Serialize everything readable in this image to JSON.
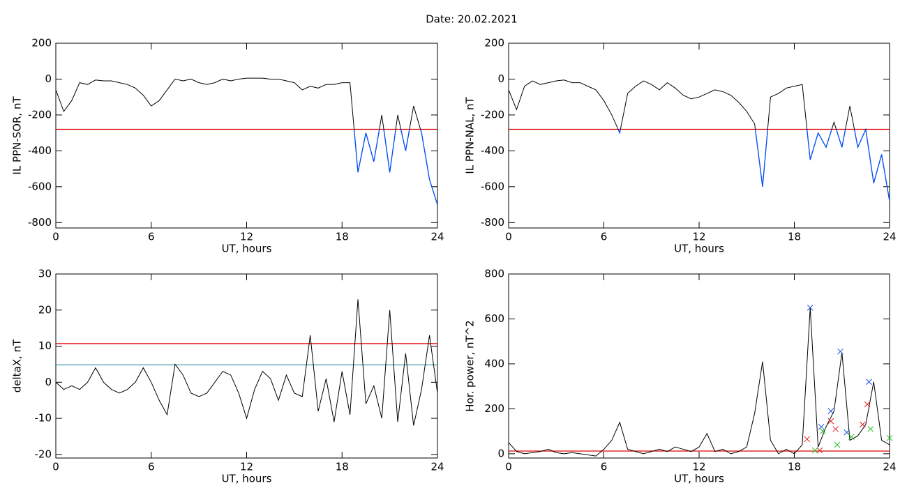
{
  "title": "Date:  20.02.2021",
  "chart_data": [
    {
      "type": "line",
      "ylabel": "IL PPN-SOR, nT",
      "xlabel": "UT, hours",
      "xlim": [
        0,
        24
      ],
      "xticks": [
        0,
        6,
        12,
        18,
        24
      ],
      "ylim": [
        -830,
        200
      ],
      "yticks": [
        -800,
        -600,
        -400,
        -200,
        0,
        200
      ],
      "color": "#000000",
      "below_color": "#0050ff",
      "hlines": [
        {
          "value": -280,
          "color": "#e00000"
        }
      ],
      "x": [
        0,
        0.5,
        1,
        1.5,
        2,
        2.5,
        3,
        3.5,
        4,
        4.5,
        5,
        5.5,
        6,
        6.5,
        7,
        7.5,
        8,
        8.5,
        9,
        9.5,
        10,
        10.5,
        11,
        11.5,
        12,
        12.5,
        13,
        13.5,
        14,
        14.5,
        15,
        15.5,
        16,
        16.5,
        17,
        17.5,
        18,
        18.5,
        19,
        19.5,
        20,
        20.5,
        21,
        21.5,
        22,
        22.5,
        23,
        23.5,
        24
      ],
      "values": [
        -60,
        -180,
        -120,
        -20,
        -30,
        -5,
        -10,
        -10,
        -20,
        -30,
        -50,
        -90,
        -150,
        -120,
        -60,
        0,
        -10,
        0,
        -20,
        -30,
        -20,
        0,
        -10,
        0,
        5,
        5,
        5,
        0,
        0,
        -10,
        -20,
        -60,
        -40,
        -50,
        -30,
        -30,
        -20,
        -20,
        -520,
        -300,
        -460,
        -200,
        -520,
        -200,
        -400,
        -150,
        -300,
        -560,
        -700
      ]
    },
    {
      "type": "line",
      "ylabel": "IL PPN-NAL, nT",
      "xlabel": "UT, hours",
      "xlim": [
        0,
        24
      ],
      "xticks": [
        0,
        6,
        12,
        18,
        24
      ],
      "ylim": [
        -830,
        200
      ],
      "yticks": [
        -800,
        -600,
        -400,
        -200,
        0,
        200
      ],
      "color": "#000000",
      "below_color": "#0050ff",
      "hlines": [
        {
          "value": -280,
          "color": "#e00000"
        }
      ],
      "x": [
        0,
        0.5,
        1,
        1.5,
        2,
        2.5,
        3,
        3.5,
        4,
        4.5,
        5,
        5.5,
        6,
        6.5,
        7,
        7.5,
        8,
        8.5,
        9,
        9.5,
        10,
        10.5,
        11,
        11.5,
        12,
        12.5,
        13,
        13.5,
        14,
        14.5,
        15,
        15.5,
        16,
        16.5,
        17,
        17.5,
        18,
        18.5,
        19,
        19.5,
        20,
        20.5,
        21,
        21.5,
        22,
        22.5,
        23,
        23.5,
        24
      ],
      "values": [
        -60,
        -170,
        -40,
        -10,
        -30,
        -20,
        -10,
        -5,
        -20,
        -20,
        -40,
        -60,
        -120,
        -200,
        -300,
        -80,
        -40,
        -10,
        -30,
        -60,
        -20,
        -50,
        -90,
        -110,
        -100,
        -80,
        -60,
        -70,
        -90,
        -130,
        -180,
        -250,
        -600,
        -100,
        -80,
        -50,
        -40,
        -30,
        -450,
        -300,
        -380,
        -240,
        -380,
        -150,
        -380,
        -280,
        -580,
        -420,
        -680
      ]
    },
    {
      "type": "line",
      "ylabel": "deltaX, nT",
      "xlabel": "UT, hours",
      "xlim": [
        0,
        24
      ],
      "xticks": [
        0,
        6,
        12,
        18,
        24
      ],
      "ylim": [
        -21,
        30
      ],
      "yticks": [
        -20,
        -10,
        0,
        10,
        20,
        30
      ],
      "color": "#000000",
      "hlines": [
        {
          "value": 10.7,
          "color": "#e00000"
        },
        {
          "value": 4.8,
          "color": "#2090a0"
        }
      ],
      "x": [
        0,
        0.5,
        1,
        1.5,
        2,
        2.5,
        3,
        3.5,
        4,
        4.5,
        5,
        5.5,
        6,
        6.5,
        7,
        7.5,
        8,
        8.5,
        9,
        9.5,
        10,
        10.5,
        11,
        11.5,
        12,
        12.5,
        13,
        13.5,
        14,
        14.5,
        15,
        15.5,
        16,
        16.5,
        17,
        17.5,
        18,
        18.5,
        19,
        19.5,
        20,
        20.5,
        21,
        21.5,
        22,
        22.5,
        23,
        23.5,
        24
      ],
      "values": [
        0,
        -2,
        -1,
        -2,
        0,
        4,
        0,
        -2,
        -3,
        -2,
        0,
        4,
        0,
        -5,
        -9,
        5,
        2,
        -3,
        -4,
        -3,
        0,
        3,
        2,
        -3,
        -10,
        -2,
        3,
        1,
        -5,
        2,
        -3,
        -4,
        13,
        -8,
        1,
        -11,
        3,
        -9,
        23,
        -6,
        -1,
        -10,
        20,
        -11,
        8,
        -12,
        -2,
        13,
        -3
      ]
    },
    {
      "type": "line",
      "ylabel": "Hor. power, nT^2",
      "xlabel": "UT, hours",
      "xlim": [
        0,
        24
      ],
      "xticks": [
        0,
        6,
        12,
        18,
        24
      ],
      "ylim": [
        -19,
        800
      ],
      "yticks": [
        0,
        200,
        400,
        600,
        800
      ],
      "color": "#000000",
      "hlines": [
        {
          "value": 12,
          "color": "#e00000"
        }
      ],
      "x": [
        0,
        0.5,
        1,
        1.5,
        2,
        2.5,
        3,
        3.5,
        4,
        4.5,
        5,
        5.5,
        6,
        6.5,
        7,
        7.5,
        8,
        8.5,
        9,
        9.5,
        10,
        10.5,
        11,
        11.5,
        12,
        12.5,
        13,
        13.5,
        14,
        14.5,
        15,
        15.5,
        16,
        16.5,
        17,
        17.5,
        18,
        18.5,
        19,
        19.5,
        20,
        20.5,
        21,
        21.5,
        22,
        22.5,
        23,
        23.5,
        24
      ],
      "values": [
        50,
        10,
        0,
        5,
        10,
        20,
        5,
        0,
        5,
        0,
        -5,
        -10,
        20,
        60,
        140,
        20,
        10,
        0,
        10,
        20,
        10,
        30,
        20,
        10,
        30,
        90,
        10,
        20,
        0,
        10,
        30,
        180,
        410,
        60,
        0,
        20,
        0,
        40,
        650,
        30,
        120,
        190,
        450,
        60,
        80,
        130,
        320,
        60,
        40
      ],
      "markers": [
        {
          "color": "#2050e0",
          "x": [
            19.0,
            20.9,
            22.7,
            20.3,
            19.7,
            21.3
          ],
          "y": [
            650,
            455,
            320,
            190,
            120,
            95
          ]
        },
        {
          "color": "#e02020",
          "x": [
            18.8,
            20.3,
            22.6,
            22.3,
            20.6,
            19.6
          ],
          "y": [
            65,
            145,
            220,
            130,
            110,
            15
          ]
        },
        {
          "color": "#20c020",
          "x": [
            19.8,
            21.6,
            22.8,
            20.7,
            24.0,
            19.3
          ],
          "y": [
            100,
            75,
            110,
            40,
            70,
            15
          ]
        }
      ]
    }
  ]
}
